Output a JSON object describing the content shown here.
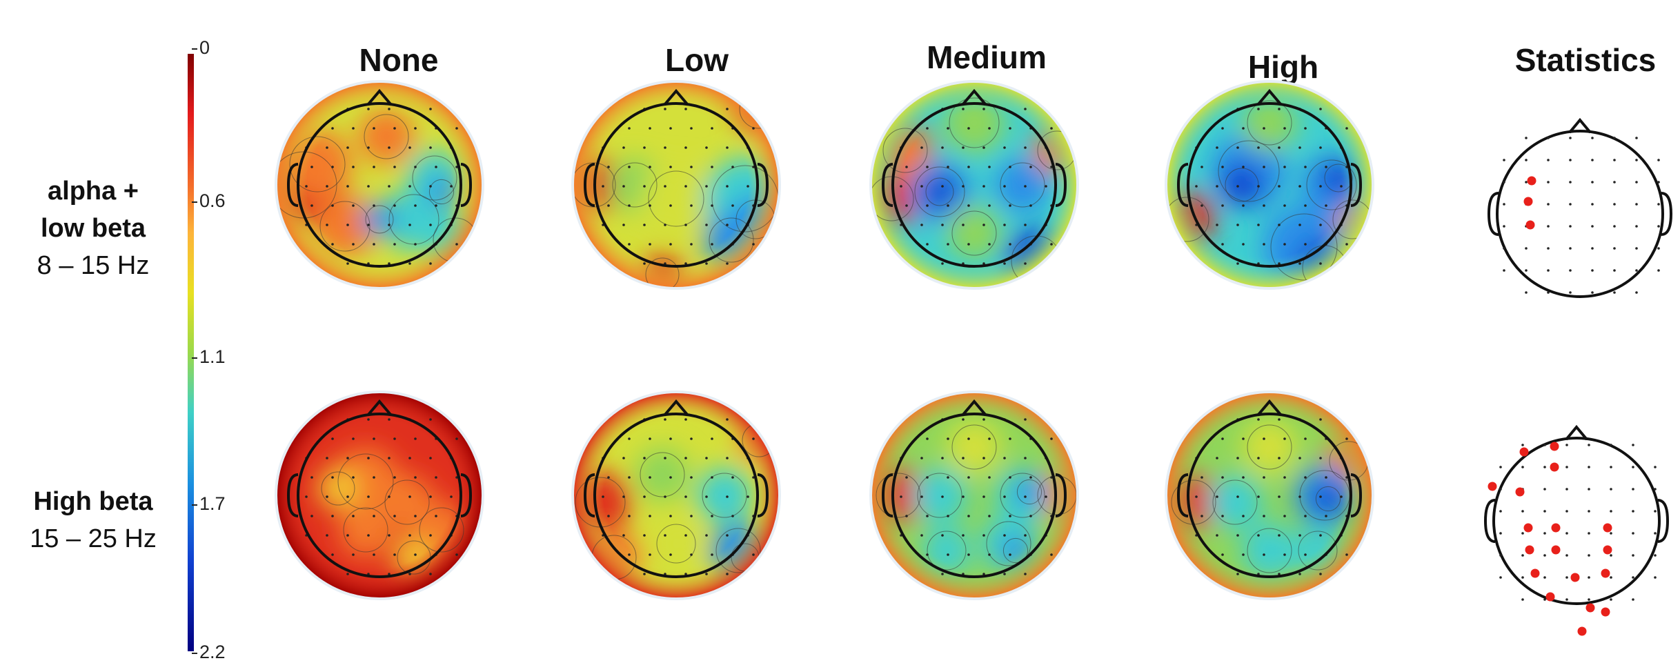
{
  "colorbar": {
    "ticks": [
      "0",
      "0.6",
      "1.1",
      "1.7",
      "2.2"
    ],
    "colors": [
      "#800000",
      "#e31a1c",
      "#fdb43a",
      "#e8e021",
      "#3fd0c6",
      "#1a8fe0",
      "#000080"
    ]
  },
  "columns": [
    "None",
    "Low",
    "Medium",
    "High",
    "Statistics"
  ],
  "rows": [
    {
      "line1": "alpha +",
      "line2": "low beta",
      "line3": "8 – 15 Hz"
    },
    {
      "line1": "High beta",
      "line2": "15 – 25 Hz"
    }
  ]
}
